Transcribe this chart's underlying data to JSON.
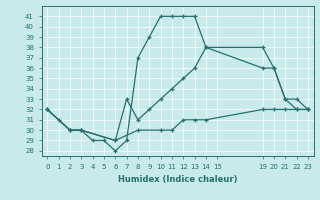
{
  "xlabel": "Humidex (Indice chaleur)",
  "bg_color": "#c8eaea",
  "line_color": "#267070",
  "grid_color": "#b0d8d8",
  "xlim": [
    -0.5,
    23.5
  ],
  "ylim": [
    27.5,
    42
  ],
  "yticks": [
    28,
    29,
    30,
    31,
    32,
    33,
    34,
    35,
    36,
    37,
    38,
    39,
    40,
    41
  ],
  "xticks": [
    0,
    1,
    2,
    3,
    4,
    5,
    6,
    7,
    8,
    9,
    10,
    11,
    12,
    13,
    14,
    15,
    19,
    20,
    21,
    22,
    23
  ],
  "xtick_labels": [
    "0",
    "1",
    "2",
    "3",
    "4",
    "5",
    "6",
    "7",
    "8",
    "9",
    "10",
    "11",
    "12",
    "13",
    "14",
    "15",
    "19",
    "20",
    "21",
    "22",
    "23"
  ],
  "line1_x": [
    0,
    1,
    2,
    3,
    4,
    5,
    6,
    7,
    8,
    9,
    10,
    11,
    12,
    13,
    14,
    19,
    20,
    21,
    22,
    23
  ],
  "line1_y": [
    32,
    31,
    30,
    30,
    29,
    29,
    28,
    29,
    37,
    39,
    41,
    41,
    41,
    41,
    38,
    38,
    36,
    33,
    32,
    32
  ],
  "line2_x": [
    0,
    2,
    3,
    6,
    7,
    8,
    9,
    10,
    11,
    12,
    13,
    14,
    19,
    20,
    21,
    22,
    23
  ],
  "line2_y": [
    32,
    30,
    30,
    29,
    33,
    31,
    32,
    33,
    34,
    35,
    36,
    38,
    36,
    36,
    33,
    33,
    32
  ],
  "line3_x": [
    0,
    2,
    3,
    6,
    8,
    10,
    11,
    12,
    13,
    14,
    19,
    20,
    21,
    22,
    23
  ],
  "line3_y": [
    32,
    30,
    30,
    29,
    30,
    30,
    30,
    31,
    31,
    31,
    32,
    32,
    32,
    32,
    32
  ]
}
